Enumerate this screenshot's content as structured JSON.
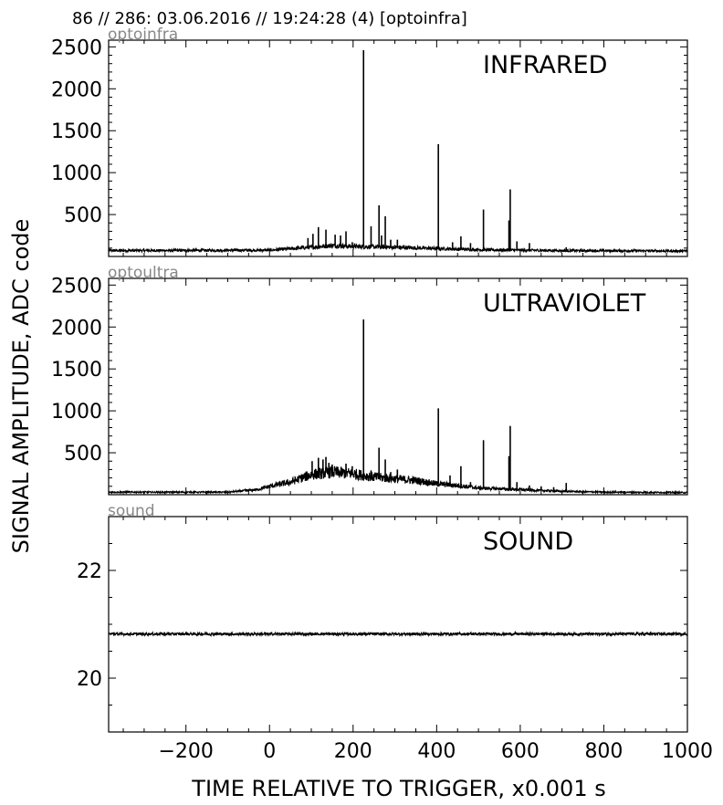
{
  "header": "86 // 286:   03.06.2016 // 19:24:28 (4)  [optoinfra]",
  "ylabel": "SIGNAL AMPLITUDE,  ADC code",
  "xlabel": "TIME RELATIVE TO TRIGGER,   x0.001 s",
  "colors": {
    "line": "#000000",
    "channel_label": "#888888"
  },
  "chart_data": [
    {
      "type": "line",
      "title": "INFRARED",
      "channel": "optoinfra",
      "xlim": [
        -385,
        1000
      ],
      "ylim": [
        0,
        2580
      ],
      "yticks": [
        500,
        1000,
        1500,
        2000,
        2500
      ],
      "ytick_labels": [
        "500",
        "1000",
        "1500",
        "2000",
        "2500"
      ],
      "baseline": [
        [
          -385,
          70
        ],
        [
          0,
          75
        ],
        [
          100,
          110
        ],
        [
          150,
          130
        ],
        [
          200,
          120
        ],
        [
          300,
          110
        ],
        [
          400,
          95
        ],
        [
          500,
          80
        ],
        [
          700,
          70
        ],
        [
          1000,
          65
        ]
      ],
      "peaks": [
        [
          92,
          220
        ],
        [
          104,
          270
        ],
        [
          117,
          350
        ],
        [
          135,
          320
        ],
        [
          157,
          260
        ],
        [
          170,
          250
        ],
        [
          183,
          300
        ],
        [
          198,
          170
        ],
        [
          225,
          2460
        ],
        [
          243,
          360
        ],
        [
          262,
          610
        ],
        [
          268,
          250
        ],
        [
          277,
          480
        ],
        [
          290,
          200
        ],
        [
          306,
          200
        ],
        [
          404,
          1340
        ],
        [
          438,
          170
        ],
        [
          458,
          240
        ],
        [
          481,
          160
        ],
        [
          512,
          560
        ],
        [
          576,
          800
        ],
        [
          573,
          430
        ],
        [
          592,
          180
        ],
        [
          622,
          160
        ],
        [
          710,
          110
        ]
      ]
    },
    {
      "type": "line",
      "title": "ULTRAVIOLET",
      "channel": "optoultra",
      "xlim": [
        -385,
        1000
      ],
      "ylim": [
        0,
        2580
      ],
      "yticks": [
        500,
        1000,
        1500,
        2000,
        2500
      ],
      "ytick_labels": [
        "500",
        "1000",
        "1500",
        "2000",
        "2500"
      ],
      "baseline": [
        [
          -385,
          30
        ],
        [
          -100,
          30
        ],
        [
          -30,
          60
        ],
        [
          0,
          100
        ],
        [
          50,
          150
        ],
        [
          100,
          240
        ],
        [
          150,
          270
        ],
        [
          200,
          250
        ],
        [
          250,
          210
        ],
        [
          300,
          190
        ],
        [
          350,
          170
        ],
        [
          400,
          130
        ],
        [
          450,
          110
        ],
        [
          500,
          80
        ],
        [
          550,
          70
        ],
        [
          600,
          60
        ],
        [
          700,
          40
        ],
        [
          800,
          30
        ],
        [
          1000,
          25
        ]
      ],
      "peaks": [
        [
          102,
          400
        ],
        [
          117,
          440
        ],
        [
          128,
          420
        ],
        [
          135,
          450
        ],
        [
          142,
          380
        ],
        [
          150,
          360
        ],
        [
          183,
          370
        ],
        [
          198,
          340
        ],
        [
          225,
          2090
        ],
        [
          243,
          290
        ],
        [
          262,
          560
        ],
        [
          277,
          420
        ],
        [
          290,
          270
        ],
        [
          306,
          300
        ],
        [
          404,
          1030
        ],
        [
          432,
          230
        ],
        [
          458,
          340
        ],
        [
          481,
          150
        ],
        [
          512,
          650
        ],
        [
          576,
          820
        ],
        [
          573,
          460
        ],
        [
          592,
          150
        ],
        [
          622,
          110
        ],
        [
          650,
          100
        ],
        [
          680,
          90
        ],
        [
          710,
          140
        ]
      ]
    },
    {
      "type": "line",
      "title": "SOUND",
      "channel": "sound",
      "xlim": [
        -385,
        1000
      ],
      "ylim": [
        19,
        23
      ],
      "yticks": [
        20,
        22
      ],
      "ytick_labels": [
        "20",
        "22"
      ],
      "baseline": [
        [
          -385,
          20.82
        ],
        [
          1000,
          20.82
        ]
      ],
      "peaks": []
    }
  ],
  "xticks": [
    -200,
    0,
    200,
    400,
    600,
    800,
    1000
  ],
  "xtick_labels": [
    "−200",
    "0",
    "200",
    "400",
    "600",
    "800",
    "1000"
  ]
}
